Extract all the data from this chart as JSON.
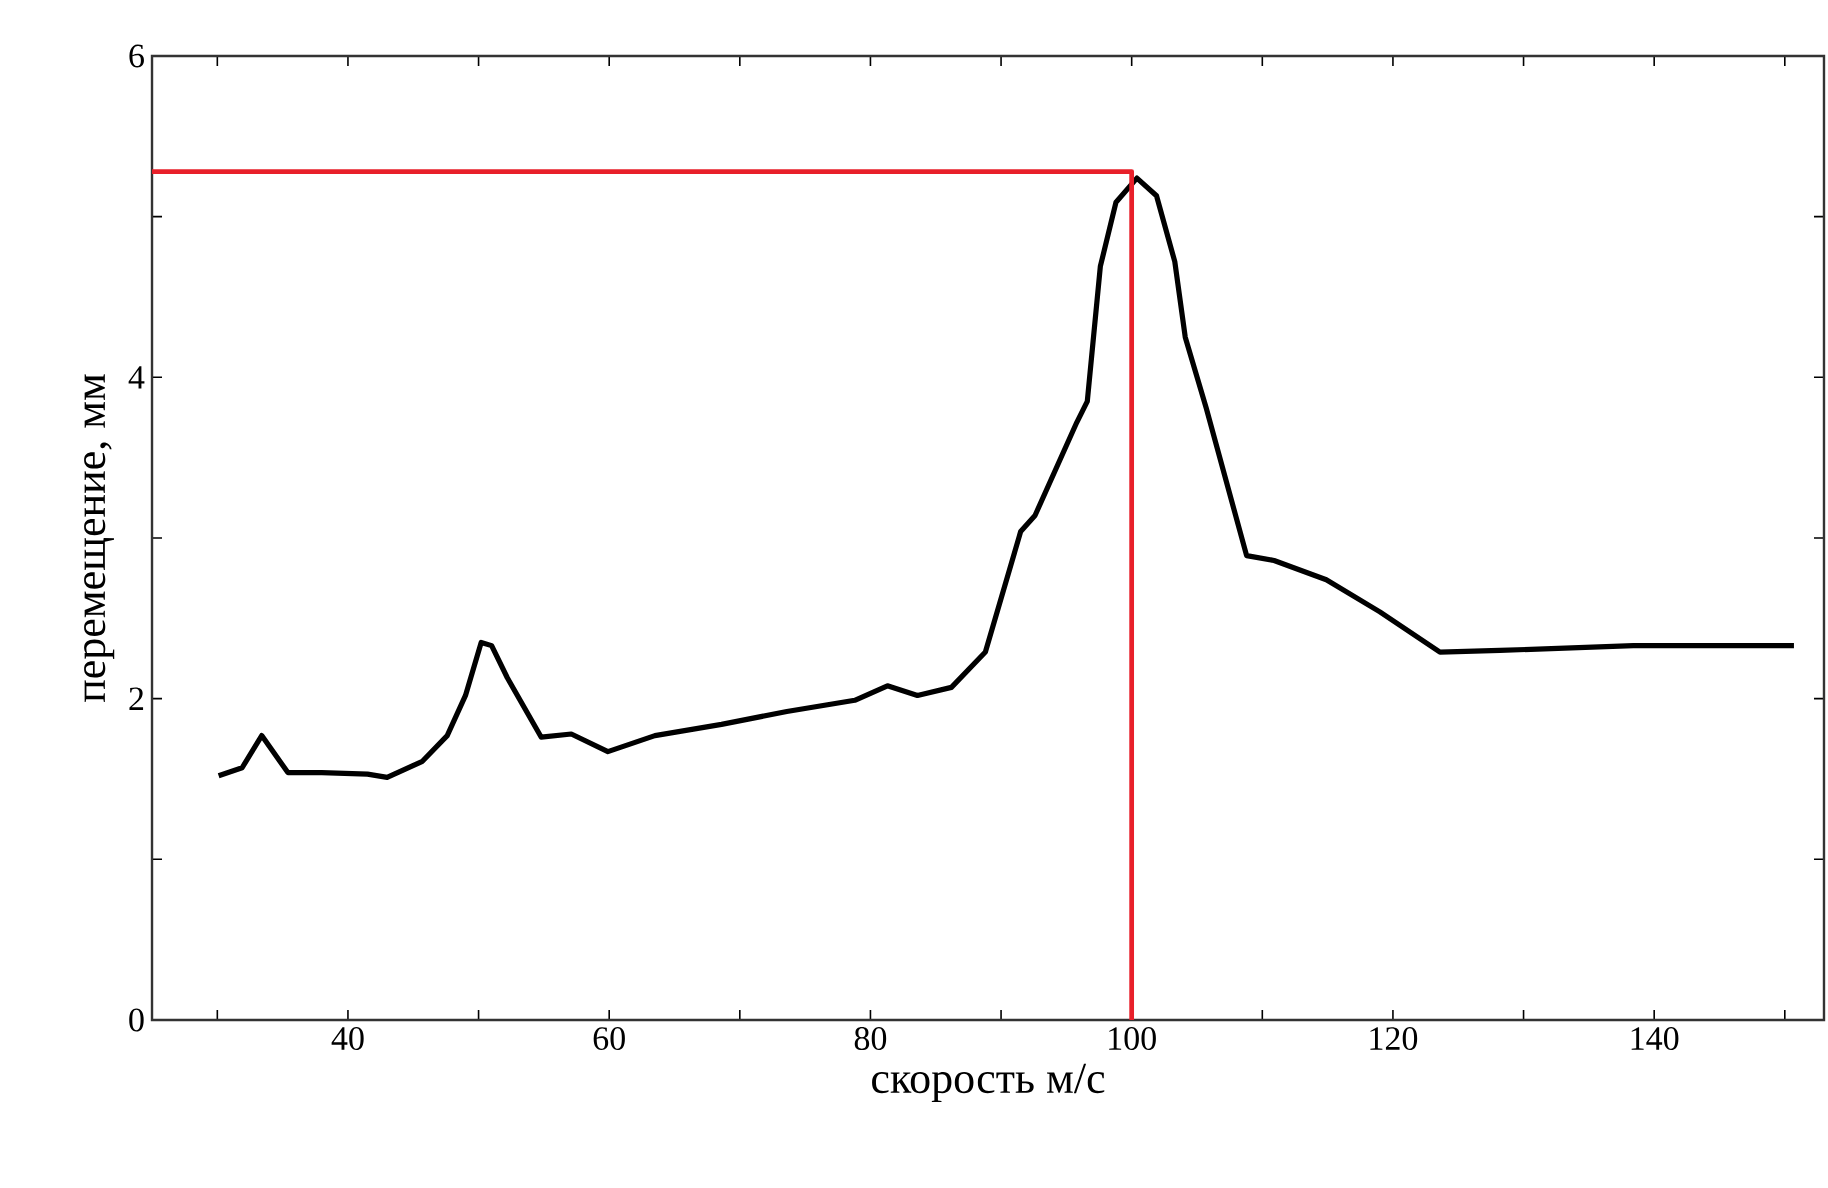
{
  "chart_data": {
    "type": "line",
    "xlabel": "скорость м/с",
    "ylabel": "перемещение, мм",
    "xlim": [
      25,
      153
    ],
    "ylim": [
      0,
      6
    ],
    "xticks": [
      {
        "value": 30,
        "label": null
      },
      40,
      {
        "value": 50,
        "label": null
      },
      60,
      {
        "value": 70,
        "label": null
      },
      80,
      {
        "value": 90,
        "label": null
      },
      100,
      {
        "value": 110,
        "label": null
      },
      120,
      {
        "value": 130,
        "label": null
      },
      140,
      {
        "value": 150,
        "label": null
      }
    ],
    "yticks": [
      0,
      {
        "value": 1,
        "label": null
      },
      2,
      {
        "value": 3,
        "label": null
      },
      4,
      {
        "value": 5,
        "label": null
      },
      6
    ],
    "grid": false,
    "marker": "none",
    "line_style": "solid",
    "series": [
      {
        "color": "#000000",
        "x": [
          30.1,
          31.9,
          33.4,
          35.4,
          38.0,
          41.5,
          43.0,
          45.7,
          47.6,
          49.0,
          50.2,
          51.0,
          52.2,
          54.8,
          57.1,
          59.9,
          63.5,
          68.6,
          73.6,
          78.8,
          81.3,
          83.6,
          86.2,
          88.8,
          91.5,
          92.6,
          95.8,
          96.6,
          97.6,
          98.8,
          100.4,
          101.9,
          103.3,
          104.1,
          105.7,
          108.8,
          110.9,
          114.9,
          119.0,
          123.6,
          128.2,
          138.4,
          150.7
        ],
        "values": [
          1.52,
          1.57,
          1.77,
          1.54,
          1.54,
          1.53,
          1.51,
          1.61,
          1.77,
          2.02,
          2.35,
          2.33,
          2.13,
          1.76,
          1.78,
          1.67,
          1.77,
          1.84,
          1.92,
          1.99,
          2.08,
          2.02,
          2.07,
          2.29,
          3.04,
          3.14,
          3.72,
          3.85,
          4.69,
          5.09,
          5.24,
          5.13,
          4.72,
          4.25,
          3.81,
          2.89,
          2.86,
          2.74,
          2.54,
          2.29,
          2.3,
          2.33,
          2.33
        ]
      },
      {
        "color": "#e8202a",
        "x": [
          25,
          100,
          100
        ],
        "values": [
          5.28,
          5.28,
          0
        ]
      }
    ]
  }
}
